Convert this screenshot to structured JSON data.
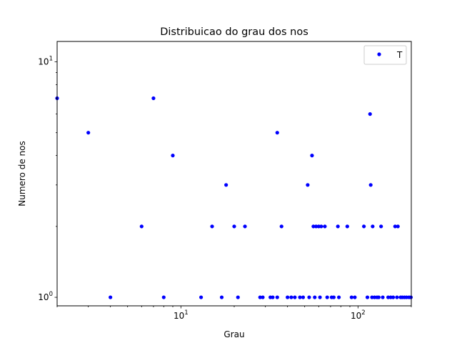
{
  "chart_data": {
    "type": "scatter",
    "title": "Distribuicao do grau dos nos",
    "xlabel": "Grau",
    "ylabel": "Numero de nos",
    "xscale": "log",
    "yscale": "log",
    "xlim": [
      2,
      200
    ],
    "ylim": [
      0.92,
      12.2
    ],
    "x_ticks": [
      {
        "value": 10,
        "base": "10",
        "exp": "1"
      },
      {
        "value": 100,
        "base": "10",
        "exp": "2"
      }
    ],
    "y_ticks": [
      {
        "value": 1,
        "base": "10",
        "exp": "0"
      },
      {
        "value": 10,
        "base": "10",
        "exp": "1"
      }
    ],
    "grid": false,
    "legend_position": "top-right",
    "series": [
      {
        "name": "T",
        "color": "#0000ff",
        "marker": "circle",
        "points": [
          [
            2,
            7
          ],
          [
            3,
            5
          ],
          [
            4,
            1
          ],
          [
            6,
            2
          ],
          [
            7,
            7
          ],
          [
            8,
            1
          ],
          [
            9,
            4
          ],
          [
            13,
            1
          ],
          [
            15,
            2
          ],
          [
            17,
            1
          ],
          [
            18,
            3
          ],
          [
            20,
            2
          ],
          [
            21,
            1
          ],
          [
            23,
            2
          ],
          [
            28,
            1
          ],
          [
            29,
            1
          ],
          [
            32,
            1
          ],
          [
            33,
            1
          ],
          [
            35,
            5
          ],
          [
            35,
            1
          ],
          [
            37,
            2
          ],
          [
            40,
            1
          ],
          [
            42,
            1
          ],
          [
            44,
            1
          ],
          [
            47,
            1
          ],
          [
            49,
            1
          ],
          [
            52,
            3
          ],
          [
            53,
            1
          ],
          [
            55,
            4
          ],
          [
            56,
            2
          ],
          [
            57,
            1
          ],
          [
            58,
            2
          ],
          [
            60,
            2
          ],
          [
            61,
            1
          ],
          [
            62,
            2
          ],
          [
            65,
            2
          ],
          [
            67,
            1
          ],
          [
            71,
            1
          ],
          [
            73,
            1
          ],
          [
            77,
            2
          ],
          [
            78,
            1
          ],
          [
            87,
            2
          ],
          [
            92,
            1
          ],
          [
            96,
            1
          ],
          [
            108,
            2
          ],
          [
            113,
            1
          ],
          [
            117,
            6
          ],
          [
            118,
            3
          ],
          [
            120,
            1
          ],
          [
            121,
            2
          ],
          [
            124,
            1
          ],
          [
            128,
            1
          ],
          [
            131,
            1
          ],
          [
            135,
            2
          ],
          [
            138,
            1
          ],
          [
            148,
            1
          ],
          [
            153,
            1
          ],
          [
            158,
            1
          ],
          [
            162,
            2
          ],
          [
            166,
            1
          ],
          [
            168,
            2
          ],
          [
            174,
            1
          ],
          [
            178,
            1
          ],
          [
            183,
            1
          ],
          [
            188,
            1
          ],
          [
            194,
            1
          ],
          [
            199,
            1
          ]
        ]
      }
    ]
  }
}
